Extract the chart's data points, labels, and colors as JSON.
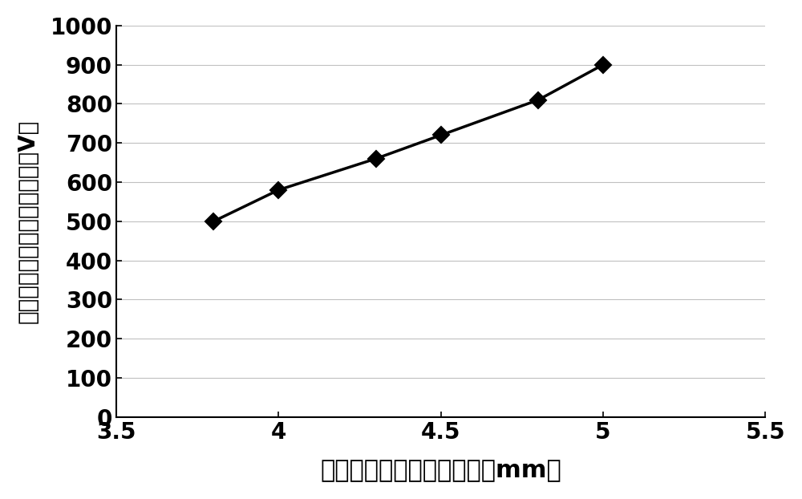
{
  "x": [
    3.8,
    4.0,
    4.3,
    4.5,
    4.8,
    5.0
  ],
  "y": [
    500,
    580,
    660,
    720,
    810,
    900
  ],
  "xlim": [
    3.5,
    5.5
  ],
  "ylim": [
    0,
    1000
  ],
  "xticks": [
    3.5,
    4.0,
    4.5,
    5.0,
    5.5
  ],
  "yticks": [
    0,
    100,
    200,
    300,
    400,
    500,
    600,
    700,
    800,
    900,
    1000
  ],
  "xlabel": "阴极与倍增极入射面距离（mm）",
  "ylabel": "阴极与倍增极入射面电压差（V）",
  "line_color": "#000000",
  "marker": "D",
  "marker_size": 10,
  "marker_facecolor": "#000000",
  "linewidth": 2.5,
  "xlabel_fontsize": 22,
  "ylabel_fontsize": 20,
  "tick_fontsize": 20,
  "background_color": "#ffffff",
  "grid_color": "#c0c0c0",
  "grid_linewidth": 0.8
}
